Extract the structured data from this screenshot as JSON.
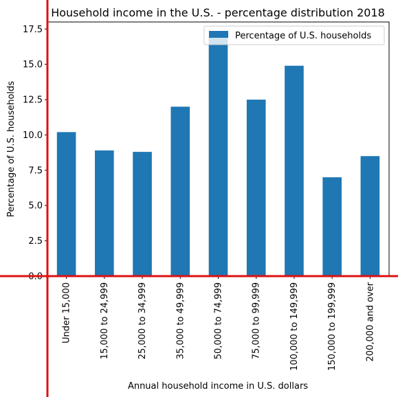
{
  "chart_data": {
    "type": "bar",
    "title": "Household income in the U.S. - percentage distribution 2018",
    "xlabel": "Annual household income in U.S. dollars",
    "ylabel": "Percentage of U.S. households",
    "categories": [
      "Under 15,000",
      "15,000 to 24,999",
      "25,000 to 34,999",
      "35,000 to 49,999",
      "50,000 to 74,999",
      "75,000 to 99,999",
      "100,000 to 149,999",
      "150,000 to 199,999",
      "200,000 and over"
    ],
    "series": [
      {
        "name": "Percentage of U.S. households",
        "values": [
          10.2,
          8.9,
          8.8,
          12.0,
          17.0,
          12.5,
          14.9,
          7.0,
          8.5
        ]
      }
    ],
    "ylim": [
      0,
      18
    ],
    "yticks": [
      "0.0",
      "2.5",
      "5.0",
      "7.5",
      "10.0",
      "12.5",
      "15.0",
      "17.5"
    ],
    "grid": false,
    "legend_position": "top-right",
    "colors": {
      "bar": "#1f77b4",
      "crosshair": "#dd1111"
    }
  }
}
